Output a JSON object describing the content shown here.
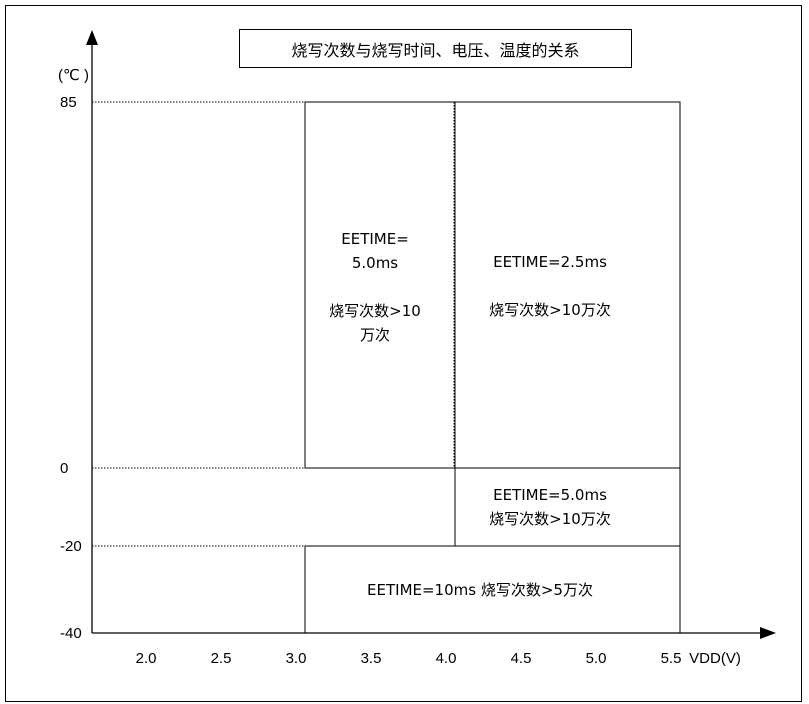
{
  "chart_data": {
    "type": "region",
    "title": "烧写次数与烧写时间、电压、温度的关系",
    "ylabel": "(℃ )",
    "xlabel": "VDD(V)",
    "x_ticks": [
      "2.0",
      "2.5",
      "3.0",
      "3.5",
      "4.0",
      "4.5",
      "5.0",
      "5.5"
    ],
    "y_ticks": [
      "85",
      "0",
      "-20",
      "-40"
    ],
    "x_range": [
      1.5,
      5.5
    ],
    "y_ticks_values": [
      85,
      0,
      -20,
      -40
    ],
    "regions": [
      {
        "vdd": [
          3.0,
          4.0
        ],
        "temp": [
          0,
          85
        ],
        "lines": [
          "EETIME=",
          "5.0ms",
          "",
          "烧写次数>10",
          "万次"
        ]
      },
      {
        "vdd": [
          4.0,
          5.5
        ],
        "temp": [
          0,
          85
        ],
        "lines": [
          "EETIME=2.5ms",
          "",
          "烧写次数>10万次"
        ]
      },
      {
        "vdd": [
          4.0,
          5.5
        ],
        "temp": [
          -20,
          0
        ],
        "lines": [
          "EETIME=5.0ms",
          "烧写次数>10万次"
        ]
      },
      {
        "vdd": [
          3.0,
          5.5
        ],
        "temp": [
          -40,
          -20
        ],
        "lines": [
          "EETIME=10ms 烧写次数>5万次"
        ]
      }
    ]
  }
}
